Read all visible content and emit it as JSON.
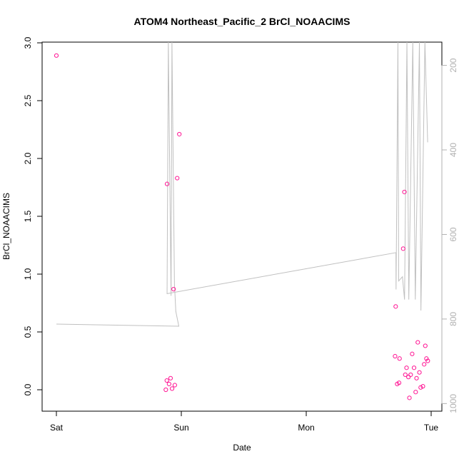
{
  "chart_data": {
    "type": "scatter",
    "title": "ATOM4 Northeast_Pacific_2 BrCl_NOAACIMS",
    "xlabel": "Date",
    "ylabel": "BrCl_NOAACIMS",
    "xlim": [
      0,
      3.0
    ],
    "ylim": [
      -0.18,
      3.0
    ],
    "x_ticks": [
      {
        "value": 0,
        "label": "Sat"
      },
      {
        "value": 1,
        "label": "Sun"
      },
      {
        "value": 2,
        "label": "Mon"
      },
      {
        "value": 3,
        "label": "Tue"
      }
    ],
    "y_ticks": [
      0.0,
      0.5,
      1.0,
      1.5,
      2.0,
      2.5,
      3.0
    ],
    "y_tick_labels": [
      "0.0",
      "0.5",
      "1.0",
      "1.5",
      "2.0",
      "2.5",
      "3.0"
    ],
    "right_axis": {
      "color": "#b0b0b0",
      "range_top": 145,
      "range_bottom": 1018,
      "ticks": [
        200,
        400,
        600,
        800,
        1000
      ],
      "tick_labels": [
        "200",
        "400",
        "600",
        "800",
        "1000"
      ]
    },
    "grid": false,
    "series": [
      {
        "type": "scatter",
        "color": "#ff1493",
        "points": [
          [
            0.0,
            2.89
          ],
          [
            0.886,
            1.78
          ],
          [
            0.967,
            1.83
          ],
          [
            0.984,
            2.21
          ],
          [
            0.938,
            0.87
          ],
          [
            0.876,
            0.0
          ],
          [
            0.884,
            0.08
          ],
          [
            0.902,
            0.05
          ],
          [
            0.914,
            0.1
          ],
          [
            0.926,
            0.01
          ],
          [
            0.948,
            0.04
          ],
          [
            2.716,
            0.72
          ],
          [
            2.776,
            1.22
          ],
          [
            2.786,
            1.71
          ],
          [
            2.711,
            0.29
          ],
          [
            2.728,
            0.05
          ],
          [
            2.743,
            0.06
          ],
          [
            2.747,
            0.27
          ],
          [
            2.793,
            0.13
          ],
          [
            2.803,
            0.19
          ],
          [
            2.818,
            0.11
          ],
          [
            2.826,
            -0.07
          ],
          [
            2.836,
            0.13
          ],
          [
            2.848,
            0.31
          ],
          [
            2.863,
            0.19
          ],
          [
            2.876,
            -0.02
          ],
          [
            2.883,
            0.1
          ],
          [
            2.893,
            0.41
          ],
          [
            2.906,
            0.15
          ],
          [
            2.916,
            0.02
          ],
          [
            2.934,
            0.03
          ],
          [
            2.944,
            0.22
          ],
          [
            2.953,
            0.38
          ],
          [
            2.962,
            0.27
          ],
          [
            2.973,
            0.25
          ]
        ]
      },
      {
        "type": "line",
        "axis": "right",
        "color": "#c0c0c0",
        "points": [
          [
            0.0,
            812
          ],
          [
            0.98,
            817
          ],
          [
            0.956,
            782
          ],
          [
            0.945,
            717
          ],
          [
            0.925,
            145
          ],
          [
            0.918,
            745
          ],
          [
            0.896,
            145
          ],
          [
            0.886,
            740
          ],
          [
            0.886,
            740
          ],
          [
            2.718,
            643
          ],
          [
            2.719,
            730
          ],
          [
            2.734,
            145
          ],
          [
            2.74,
            710
          ],
          [
            2.77,
            700
          ],
          [
            2.787,
            754
          ],
          [
            2.806,
            145
          ],
          [
            2.821,
            754
          ],
          [
            2.853,
            145
          ],
          [
            2.873,
            754
          ],
          [
            2.906,
            145
          ],
          [
            2.918,
            780
          ],
          [
            2.95,
            145
          ],
          [
            2.972,
            382
          ]
        ]
      }
    ]
  }
}
